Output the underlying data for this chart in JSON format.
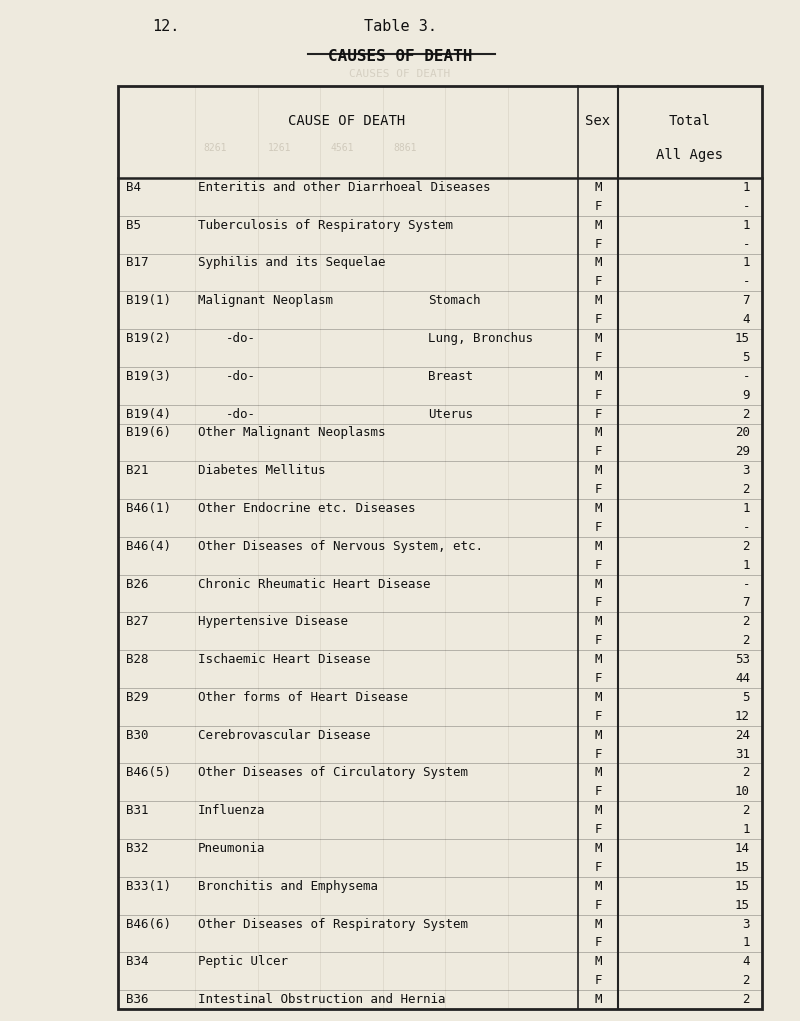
{
  "title_left": "12.",
  "title_center": "Table 3.",
  "subtitle": "CAUSES OF DEATH",
  "bg_color": "#eeeade",
  "header_col1": "CAUSE OF DEATH",
  "header_col2": "Sex",
  "header_col3": "Total",
  "header_col3b": "All Ages",
  "watermark_labels": [
    "8261",
    "1261",
    "4561",
    "8861"
  ],
  "rows": [
    {
      "code": "B4",
      "cause": "Enteritis and other Diarrhoeal Diseases",
      "cause2": "",
      "sex": "M",
      "value": "1"
    },
    {
      "code": "",
      "cause": "",
      "cause2": "",
      "sex": "F",
      "value": "-"
    },
    {
      "code": "B5",
      "cause": "Tuberculosis of Respiratory System",
      "cause2": "",
      "sex": "M",
      "value": "1"
    },
    {
      "code": "",
      "cause": "",
      "cause2": "",
      "sex": "F",
      "value": "-"
    },
    {
      "code": "B17",
      "cause": "Syphilis and its Sequelae",
      "cause2": "",
      "sex": "M",
      "value": "1"
    },
    {
      "code": "",
      "cause": "",
      "cause2": "",
      "sex": "F",
      "value": "-"
    },
    {
      "code": "B19(1)",
      "cause": "Malignant Neoplasm",
      "cause2": "Stomach",
      "sex": "M",
      "value": "7"
    },
    {
      "code": "",
      "cause": "",
      "cause2": "",
      "sex": "F",
      "value": "4"
    },
    {
      "code": "B19(2)",
      "cause": "-do-",
      "cause2": "Lung, Bronchus",
      "sex": "M",
      "value": "15"
    },
    {
      "code": "",
      "cause": "",
      "cause2": "",
      "sex": "F",
      "value": "5"
    },
    {
      "code": "B19(3)",
      "cause": "-do-",
      "cause2": "Breast",
      "sex": "M",
      "value": "-"
    },
    {
      "code": "",
      "cause": "",
      "cause2": "",
      "sex": "F",
      "value": "9"
    },
    {
      "code": "B19(4)",
      "cause": "-do-",
      "cause2": "Uterus",
      "sex": "F",
      "value": "2"
    },
    {
      "code": "B19(6)",
      "cause": "Other Malignant Neoplasms",
      "cause2": "",
      "sex": "M",
      "value": "20"
    },
    {
      "code": "",
      "cause": "",
      "cause2": "",
      "sex": "F",
      "value": "29"
    },
    {
      "code": "B21",
      "cause": "Diabetes Mellitus",
      "cause2": "",
      "sex": "M",
      "value": "3"
    },
    {
      "code": "",
      "cause": "",
      "cause2": "",
      "sex": "F",
      "value": "2"
    },
    {
      "code": "B46(1)",
      "cause": "Other Endocrine etc. Diseases",
      "cause2": "",
      "sex": "M",
      "value": "1"
    },
    {
      "code": "",
      "cause": "",
      "cause2": "",
      "sex": "F",
      "value": "-"
    },
    {
      "code": "B46(4)",
      "cause": "Other Diseases of Nervous System, etc.",
      "cause2": "",
      "sex": "M",
      "value": "2"
    },
    {
      "code": "",
      "cause": "",
      "cause2": "",
      "sex": "F",
      "value": "1"
    },
    {
      "code": "B26",
      "cause": "Chronic Rheumatic Heart Disease",
      "cause2": "",
      "sex": "M",
      "value": "-"
    },
    {
      "code": "",
      "cause": "",
      "cause2": "",
      "sex": "F",
      "value": "7"
    },
    {
      "code": "B27",
      "cause": "Hypertensive Disease",
      "cause2": "",
      "sex": "M",
      "value": "2"
    },
    {
      "code": "",
      "cause": "",
      "cause2": "",
      "sex": "F",
      "value": "2"
    },
    {
      "code": "B28",
      "cause": "Ischaemic Heart Disease",
      "cause2": "",
      "sex": "M",
      "value": "53"
    },
    {
      "code": "",
      "cause": "",
      "cause2": "",
      "sex": "F",
      "value": "44"
    },
    {
      "code": "B29",
      "cause": "Other forms of Heart Disease",
      "cause2": "",
      "sex": "M",
      "value": "5"
    },
    {
      "code": "",
      "cause": "",
      "cause2": "",
      "sex": "F",
      "value": "12"
    },
    {
      "code": "B30",
      "cause": "Cerebrovascular Disease",
      "cause2": "",
      "sex": "M",
      "value": "24"
    },
    {
      "code": "",
      "cause": "",
      "cause2": "",
      "sex": "F",
      "value": "31"
    },
    {
      "code": "B46(5)",
      "cause": "Other Diseases of Circulatory System",
      "cause2": "",
      "sex": "M",
      "value": "2"
    },
    {
      "code": "",
      "cause": "",
      "cause2": "",
      "sex": "F",
      "value": "10"
    },
    {
      "code": "B31",
      "cause": "Influenza",
      "cause2": "",
      "sex": "M",
      "value": "2"
    },
    {
      "code": "",
      "cause": "",
      "cause2": "",
      "sex": "F",
      "value": "1"
    },
    {
      "code": "B32",
      "cause": "Pneumonia",
      "cause2": "",
      "sex": "M",
      "value": "14"
    },
    {
      "code": "",
      "cause": "",
      "cause2": "",
      "sex": "F",
      "value": "15"
    },
    {
      "code": "B33(1)",
      "cause": "Bronchitis and Emphysema",
      "cause2": "",
      "sex": "M",
      "value": "15"
    },
    {
      "code": "",
      "cause": "",
      "cause2": "",
      "sex": "F",
      "value": "15"
    },
    {
      "code": "B46(6)",
      "cause": "Other Diseases of Respiratory System",
      "cause2": "",
      "sex": "M",
      "value": "3"
    },
    {
      "code": "",
      "cause": "",
      "cause2": "",
      "sex": "F",
      "value": "1"
    },
    {
      "code": "B34",
      "cause": "Peptic Ulcer",
      "cause2": "",
      "sex": "M",
      "value": "4"
    },
    {
      "code": "",
      "cause": "",
      "cause2": "",
      "sex": "F",
      "value": "2"
    },
    {
      "code": "B36",
      "cause": "Intestinal Obstruction and Hernia",
      "cause2": "",
      "sex": "M",
      "value": "2"
    }
  ],
  "font_size": 9.0,
  "header_font_size": 10.0,
  "title_font_size": 11.0,
  "text_color": "#111111",
  "line_color": "#222222",
  "watermark_color": "#b8b0a0"
}
